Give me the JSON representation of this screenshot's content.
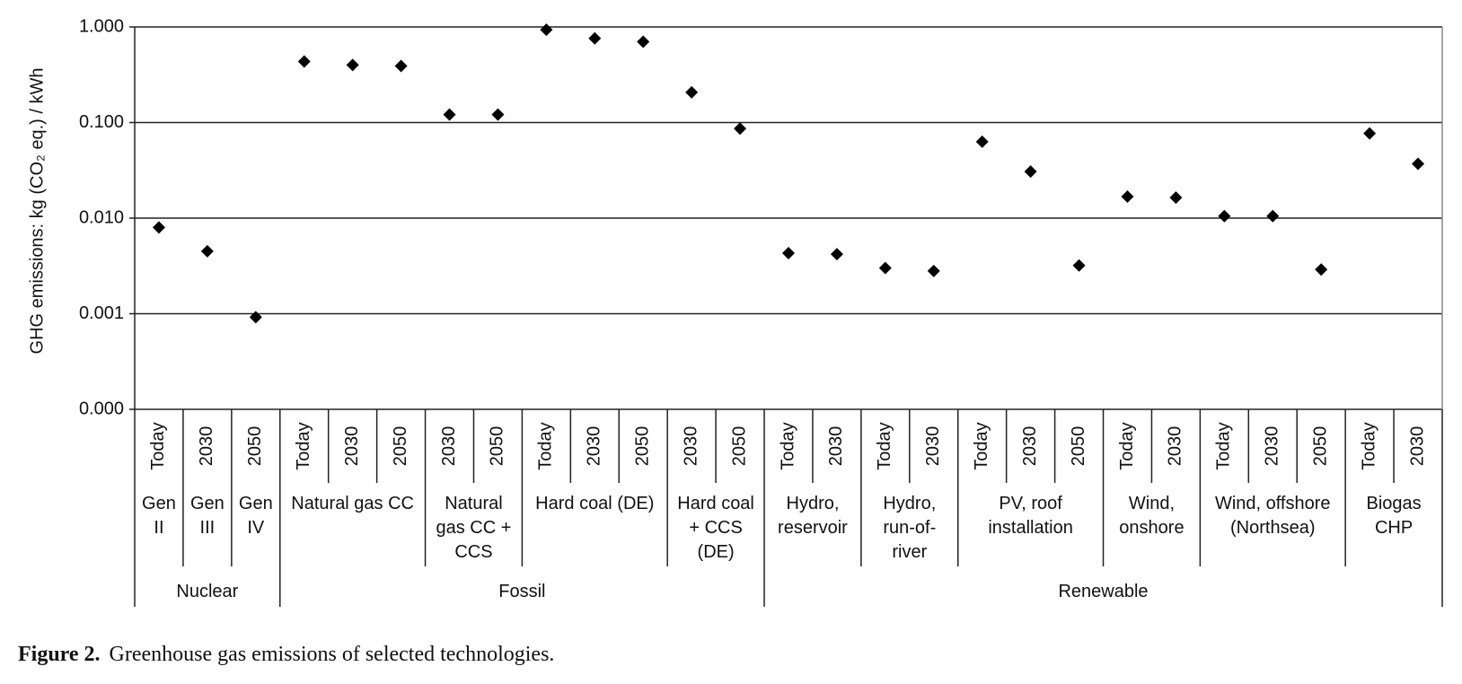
{
  "chart_data": {
    "type": "scatter",
    "y_label": "GHG emissions: kg (CO₂ eq.) / kWh",
    "log_y": true,
    "grid": true,
    "color": "#000000",
    "ylim": [
      0.0001,
      1
    ],
    "yticks": [
      {
        "value": 0.0001,
        "label": "0.000"
      },
      {
        "value": 0.001,
        "label": "0.001"
      },
      {
        "value": 0.01,
        "label": "0.010"
      },
      {
        "value": 0.1,
        "label": "0.100"
      },
      {
        "value": 1,
        "label": "1.000"
      }
    ],
    "groups": [
      {
        "label": "Nuclear",
        "technologies": [
          {
            "label": "Gen II",
            "periods": [
              "Today"
            ],
            "values": [
              0.008
            ]
          },
          {
            "label": "Gen III",
            "periods": [
              "2030"
            ],
            "values": [
              0.0045
            ]
          },
          {
            "label": "Gen IV",
            "periods": [
              "2050"
            ],
            "values": [
              0.00092
            ]
          }
        ]
      },
      {
        "label": "Fossil",
        "technologies": [
          {
            "label": "Natural gas CC",
            "periods": [
              "Today",
              "2030",
              "2050"
            ],
            "values": [
              0.435,
              0.4,
              0.39
            ]
          },
          {
            "label": "Natural gas CC + CCS",
            "periods": [
              "2030",
              "2050"
            ],
            "values": [
              0.121,
              0.121
            ]
          },
          {
            "label": "Hard coal (DE)",
            "periods": [
              "Today",
              "2030",
              "2050"
            ],
            "values": [
              0.935,
              0.76,
              0.7
            ]
          },
          {
            "label": "Hard coal + CCS (DE)",
            "periods": [
              "2030",
              "2050"
            ],
            "values": [
              0.207,
              0.0865
            ]
          }
        ]
      },
      {
        "label": "Renewable",
        "technologies": [
          {
            "label": "Hydro, reservoir",
            "periods": [
              "Today",
              "2030"
            ],
            "values": [
              0.0043,
              0.0042
            ]
          },
          {
            "label": "Hydro, run-of-river",
            "periods": [
              "Today",
              "2030"
            ],
            "values": [
              0.003,
              0.0028
            ]
          },
          {
            "label": "PV, roof installation",
            "periods": [
              "Today",
              "2030",
              "2050"
            ],
            "values": [
              0.063,
              0.0307,
              0.0032
            ]
          },
          {
            "label": "Wind, onshore",
            "periods": [
              "Today",
              "2030"
            ],
            "values": [
              0.0168,
              0.0164
            ]
          },
          {
            "label": "Wind, offshore (Northsea)",
            "periods": [
              "Today",
              "2030",
              "2050"
            ],
            "values": [
              0.0105,
              0.0105,
              0.0029
            ]
          },
          {
            "label": "Biogas CHP",
            "periods": [
              "Today",
              "2030"
            ],
            "values": [
              0.077,
              0.037
            ]
          }
        ]
      }
    ],
    "caption_label": "Figure 2.",
    "caption": "Greenhouse gas emissions of selected technologies."
  }
}
